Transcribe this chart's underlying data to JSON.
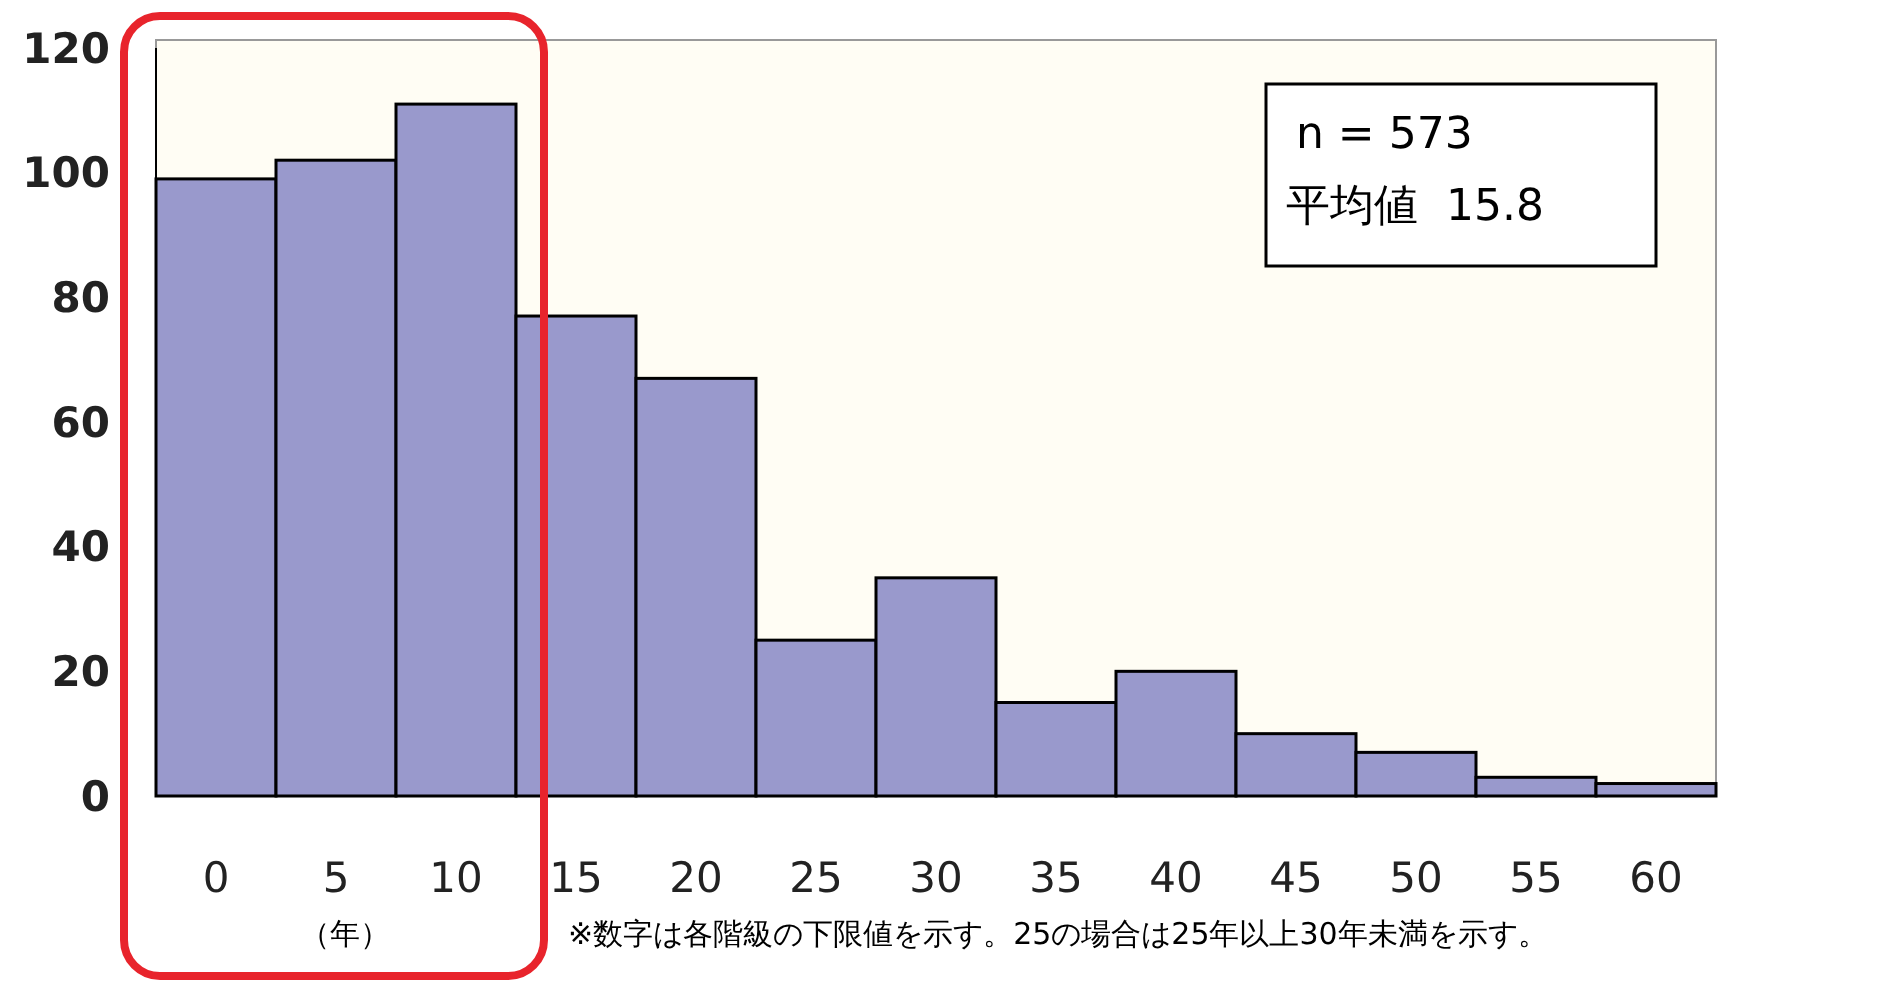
{
  "chart_data": {
    "type": "bar",
    "categories": [
      "0",
      "5",
      "10",
      "15",
      "20",
      "25",
      "30",
      "35",
      "40",
      "45",
      "50",
      "55",
      "60"
    ],
    "values": [
      99,
      102,
      111,
      77,
      67,
      25,
      35,
      15,
      20,
      10,
      7,
      3,
      2
    ],
    "color": "#9999cc",
    "ylim": [
      0,
      120
    ],
    "yticks": [
      0,
      20,
      40,
      60,
      80,
      100,
      120
    ],
    "grid": false,
    "annotations": [
      "n = 573",
      "平均値  15.8",
      "（年）",
      "※数字は各階級の下限値を示す。25の場合は25年以上30年未満を示す。"
    ]
  }
}
